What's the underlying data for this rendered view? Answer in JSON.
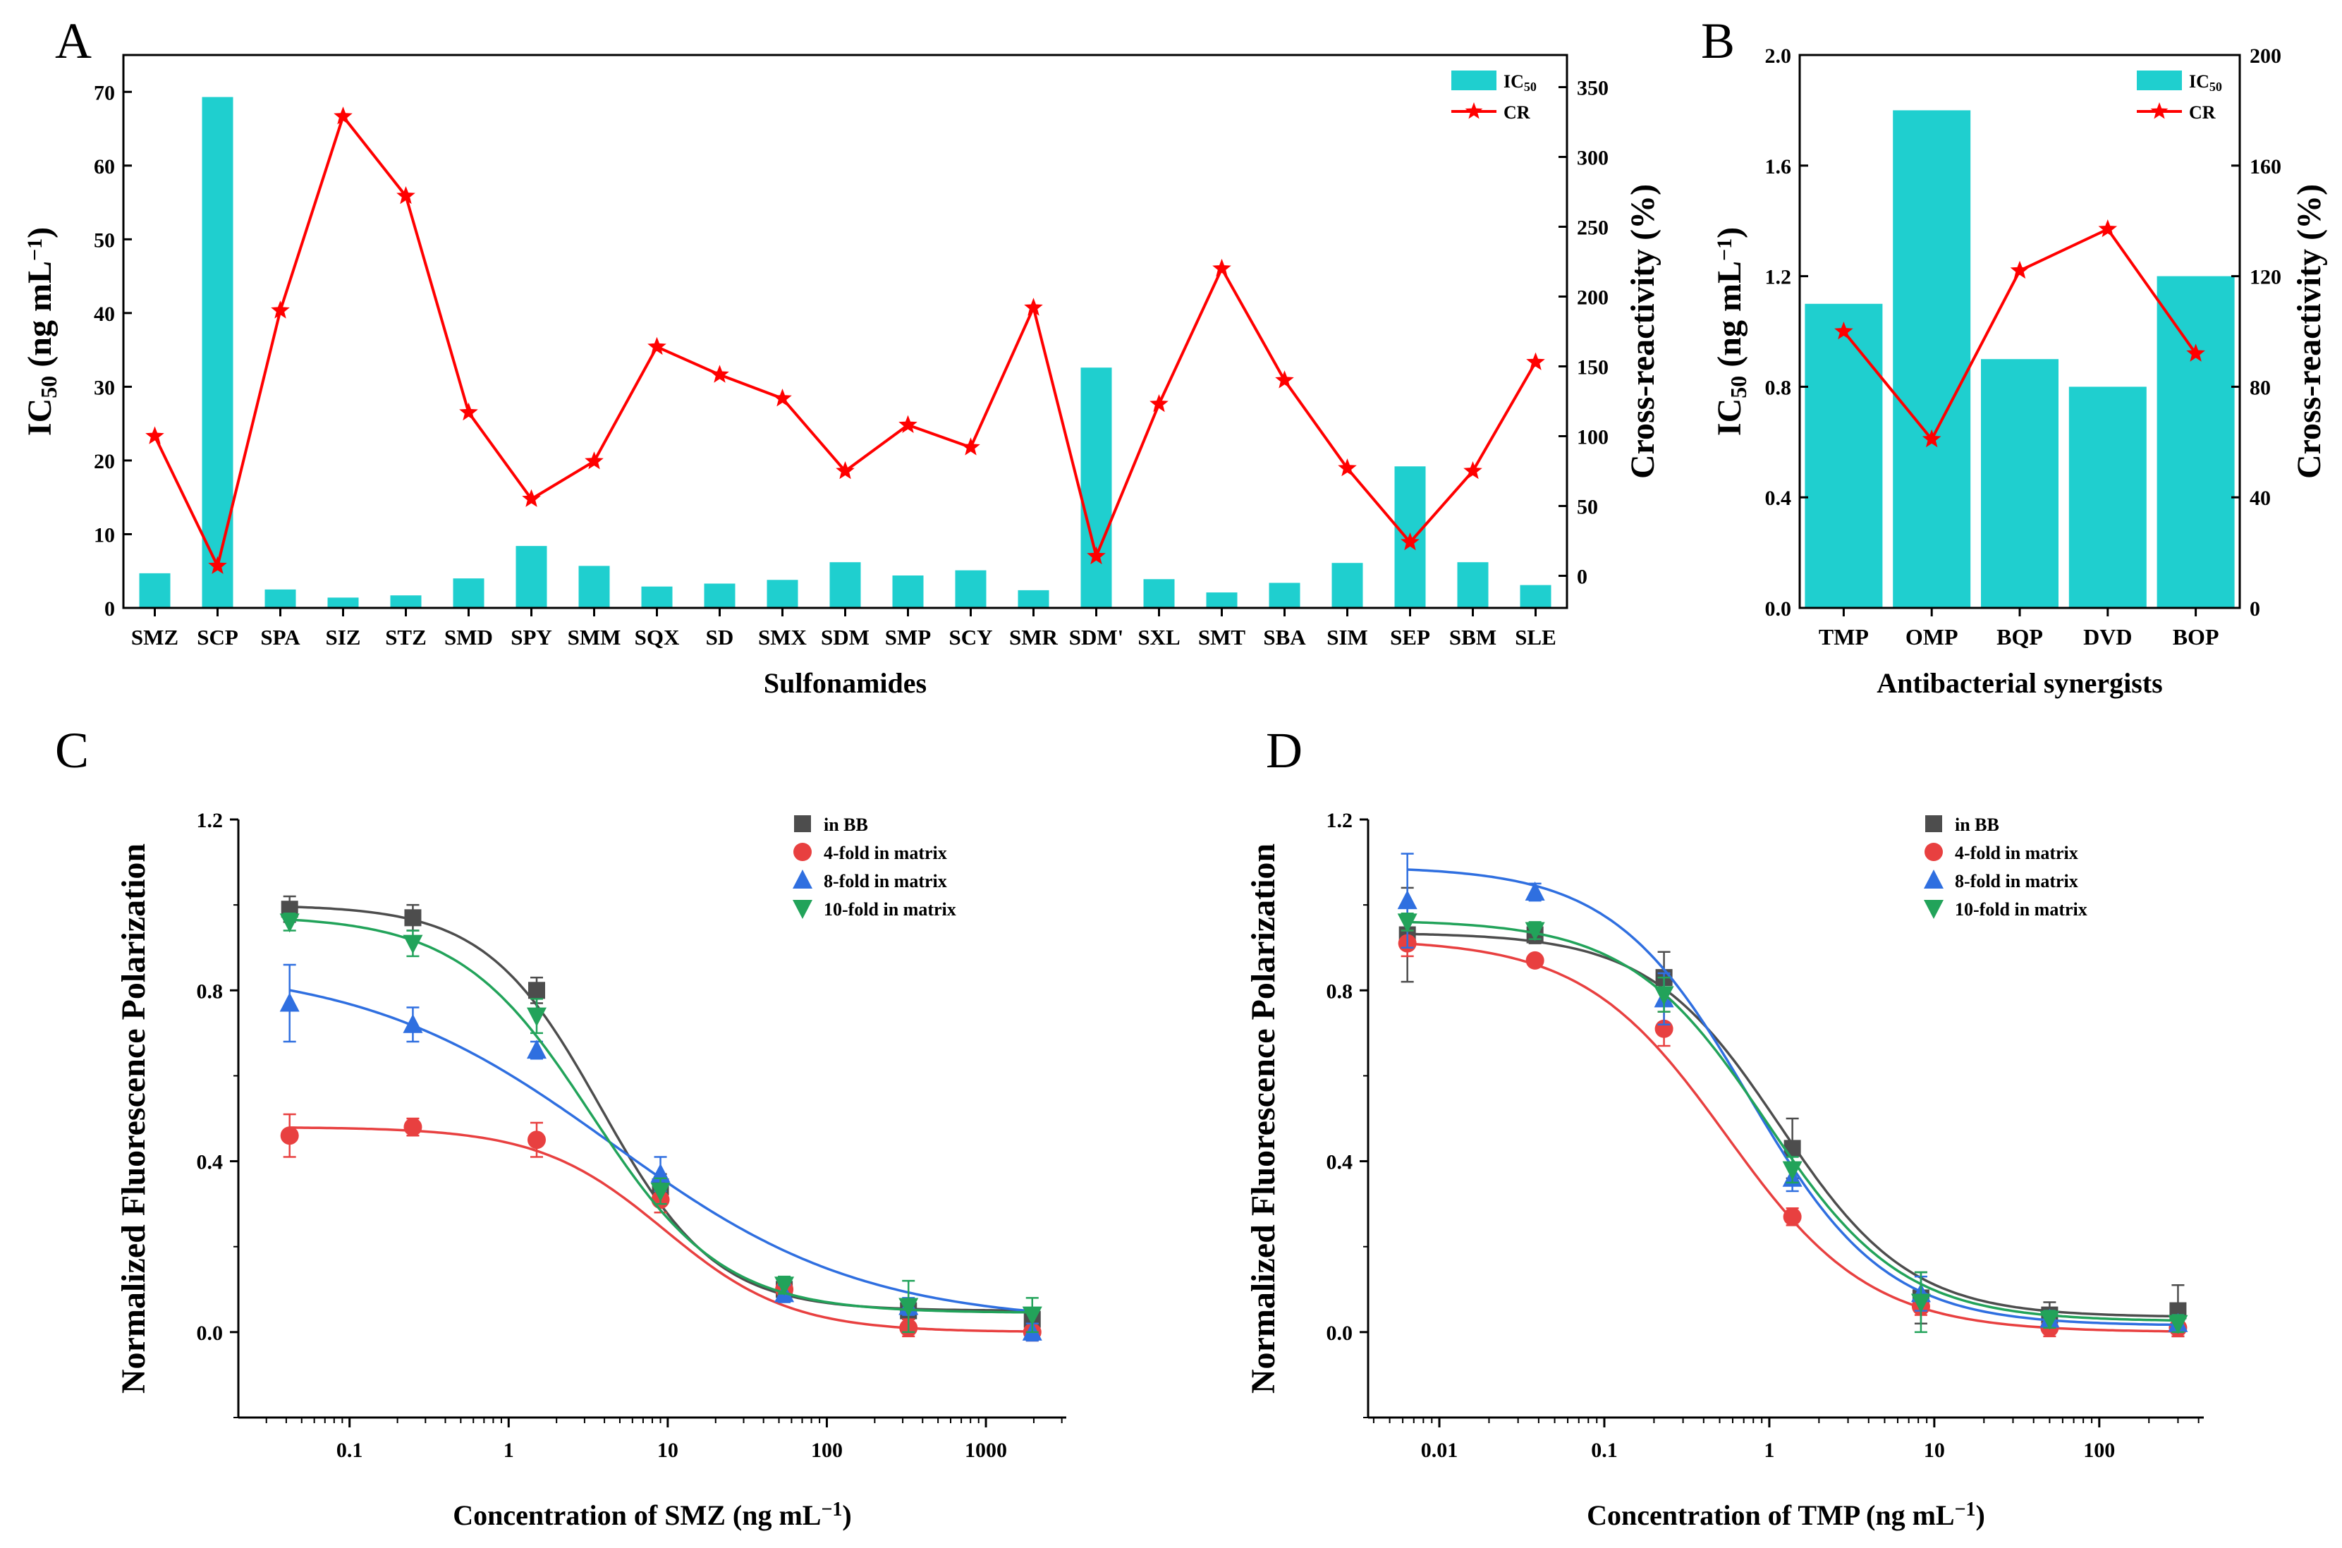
{
  "chart_data": [
    {
      "id": "A",
      "panel_label": "A",
      "type": "bar+line",
      "xlabel": "Sulfonamides",
      "ylabel_main": "IC",
      "ylabel_sub": "50",
      "ylabel_rest": " (ng mL",
      "ylabel_sup": "−1",
      "ylabel_close": ")",
      "y2label": "Cross-reactivity (%)",
      "categories": [
        "SMZ",
        "SCP",
        "SPA",
        "SIZ",
        "STZ",
        "SMD",
        "SPY",
        "SMM",
        "SQX",
        "SD",
        "SMX",
        "SDM",
        "SMP",
        "SCY",
        "SMR",
        "SDM'",
        "SXL",
        "SMT",
        "SBA",
        "SIM",
        "SEP",
        "SBM",
        "SLE"
      ],
      "series": [
        {
          "name": "IC50",
          "legend_main": "IC",
          "legend_sub": "50",
          "kind": "bar",
          "color": "#1fcfcf",
          "values": [
            4.7,
            69.3,
            2.5,
            1.4,
            1.7,
            4.0,
            8.4,
            5.7,
            2.9,
            3.3,
            3.8,
            6.2,
            4.4,
            5.1,
            2.4,
            32.6,
            3.9,
            2.1,
            3.4,
            6.1,
            19.2,
            6.2,
            3.1
          ]
        },
        {
          "name": "CR",
          "legend": "CR",
          "kind": "line",
          "axis": "right",
          "color": "#ff0000",
          "marker": "star",
          "values": [
            100,
            7,
            190,
            329,
            272,
            117,
            55,
            82,
            164,
            144,
            127,
            75,
            108,
            92,
            192,
            14,
            123,
            220,
            140,
            77,
            24,
            75,
            153
          ]
        }
      ],
      "ylim": [
        0,
        75
      ],
      "yticks": [
        0,
        10,
        20,
        30,
        40,
        50,
        60,
        70
      ],
      "y2lim": [
        -23,
        373
      ],
      "y2ticks": [
        0,
        50,
        100,
        150,
        200,
        250,
        300,
        350
      ],
      "legend_position": "top-right"
    },
    {
      "id": "B",
      "panel_label": "B",
      "type": "bar+line",
      "xlabel": "Antibacterial synergists",
      "ylabel_main": "IC",
      "ylabel_sub": "50",
      "ylabel_rest": " (ng mL",
      "ylabel_sup": "−1",
      "ylabel_close": ")",
      "y2label": "Cross-reactivity (%)",
      "categories": [
        "TMP",
        "OMP",
        "BQP",
        "DVD",
        "BOP"
      ],
      "series": [
        {
          "name": "IC50",
          "legend_main": "IC",
          "legend_sub": "50",
          "kind": "bar",
          "color": "#1fcfcf",
          "values": [
            1.1,
            1.8,
            0.9,
            0.8,
            1.2
          ]
        },
        {
          "name": "CR",
          "legend": "CR",
          "kind": "line",
          "axis": "right",
          "color": "#ff0000",
          "marker": "star",
          "values": [
            100,
            61,
            122,
            137,
            92
          ]
        }
      ],
      "ylim": [
        0,
        2.0
      ],
      "yticks": [
        "0.0",
        "0.4",
        "0.8",
        "1.2",
        "1.6",
        "2.0"
      ],
      "y2lim": [
        0,
        200
      ],
      "y2ticks": [
        0,
        40,
        80,
        120,
        160,
        200
      ],
      "legend_position": "top-right"
    },
    {
      "id": "C",
      "panel_label": "C",
      "type": "scatter+fit",
      "xscale": "log",
      "xlabel_main": "Concentration of SMZ (ng mL",
      "xlabel_sup": "−1",
      "xlabel_close": ")",
      "ylabel": "Normalized Fluorescence Polarization",
      "xlim": [
        0.02,
        3200
      ],
      "xticks": [
        0.1,
        1,
        10,
        100,
        1000
      ],
      "xtick_labels": [
        "0.1",
        "1",
        "10",
        "100",
        "1000"
      ],
      "ylim": [
        -0.2,
        1.2
      ],
      "yticks": [
        "0.0",
        "0.4",
        "0.8",
        "1.2"
      ],
      "x": [
        0.042,
        0.25,
        1.5,
        9,
        54,
        326,
        1956
      ],
      "series": [
        {
          "name": "in BB",
          "marker": "square",
          "color": "#4d4d4d",
          "values": [
            0.99,
            0.97,
            0.8,
            0.34,
            0.1,
            0.05,
            0.03
          ],
          "errors": [
            0.03,
            0.03,
            0.03,
            0.03,
            0.02,
            0.02,
            0.02
          ],
          "fit": {
            "top": 1.0,
            "bottom": 0.05,
            "ic50": 3.8,
            "slope": 1.2
          }
        },
        {
          "name": "4-fold in matrix",
          "marker": "circle",
          "color": "#e84040",
          "values": [
            0.46,
            0.48,
            0.45,
            0.31,
            0.1,
            0.01,
            0.0
          ],
          "errors": [
            0.05,
            0.02,
            0.04,
            0.03,
            0.02,
            0.02,
            0.02
          ],
          "fit": {
            "top": 0.48,
            "bottom": 0.0,
            "ic50": 9.5,
            "slope": 1.1
          }
        },
        {
          "name": "8-fold in matrix",
          "marker": "triangle-up",
          "color": "#2f6fe0",
          "values": [
            0.77,
            0.72,
            0.66,
            0.37,
            0.09,
            0.06,
            0.0
          ],
          "errors": [
            0.09,
            0.04,
            0.02,
            0.04,
            0.02,
            0.02,
            0.02
          ],
          "fit": {
            "top": 0.86,
            "bottom": 0.02,
            "ic50": 4.5,
            "slope": 0.55
          }
        },
        {
          "name": "10-fold in matrix",
          "marker": "triangle-down",
          "color": "#22a35a",
          "values": [
            0.96,
            0.91,
            0.74,
            0.33,
            0.11,
            0.06,
            0.04
          ],
          "errors": [
            0.02,
            0.03,
            0.04,
            0.03,
            0.02,
            0.06,
            0.04
          ],
          "fit": {
            "top": 0.975,
            "bottom": 0.045,
            "ic50": 3.3,
            "slope": 1.05
          }
        }
      ],
      "legend_position": "top-right"
    },
    {
      "id": "D",
      "panel_label": "D",
      "type": "scatter+fit",
      "xscale": "log",
      "xlabel_main": "Concentration of TMP (ng mL",
      "xlabel_sup": "−1",
      "xlabel_close": ")",
      "ylabel": "Normalized Fluorescence Polarization",
      "xlim": [
        0.0037,
        430
      ],
      "xticks": [
        0.01,
        0.1,
        1,
        10,
        100
      ],
      "xtick_labels": [
        "0.01",
        "0.1",
        "1",
        "10",
        "100"
      ],
      "ylim": [
        -0.2,
        1.2
      ],
      "yticks": [
        "0.0",
        "0.4",
        "0.8",
        "1.2"
      ],
      "x": [
        0.0064,
        0.038,
        0.23,
        1.38,
        8.3,
        50,
        300
      ],
      "series": [
        {
          "name": "in BB",
          "marker": "square",
          "color": "#4d4d4d",
          "values": [
            0.93,
            0.93,
            0.83,
            0.43,
            0.08,
            0.04,
            0.05
          ],
          "errors": [
            0.11,
            0.02,
            0.06,
            0.07,
            0.06,
            0.03,
            0.06
          ],
          "fit": {
            "top": 0.935,
            "bottom": 0.035,
            "ic50": 1.15,
            "slope": 1.1
          }
        },
        {
          "name": "4-fold in matrix",
          "marker": "circle",
          "color": "#e84040",
          "values": [
            0.91,
            0.87,
            0.71,
            0.27,
            0.06,
            0.01,
            0.01
          ],
          "errors": [
            0.03,
            0.01,
            0.04,
            0.02,
            0.02,
            0.02,
            0.02
          ],
          "fit": {
            "top": 0.92,
            "bottom": 0.0,
            "ic50": 0.55,
            "slope": 1.0
          }
        },
        {
          "name": "8-fold in matrix",
          "marker": "triangle-up",
          "color": "#2f6fe0",
          "values": [
            1.01,
            1.03,
            0.78,
            0.36,
            0.09,
            0.03,
            0.02
          ],
          "errors": [
            0.11,
            0.02,
            0.06,
            0.03,
            0.04,
            0.02,
            0.02
          ],
          "fit": {
            "top": 1.09,
            "bottom": 0.015,
            "ic50": 0.75,
            "slope": 1.05
          }
        },
        {
          "name": "10-fold in matrix",
          "marker": "triangle-down",
          "color": "#22a35a",
          "values": [
            0.96,
            0.94,
            0.79,
            0.38,
            0.07,
            0.03,
            0.02
          ],
          "errors": [
            0.02,
            0.02,
            0.04,
            0.03,
            0.07,
            0.02,
            0.02
          ],
          "fit": {
            "top": 0.965,
            "bottom": 0.025,
            "ic50": 0.95,
            "slope": 1.05
          }
        }
      ],
      "legend_position": "top-right"
    }
  ]
}
